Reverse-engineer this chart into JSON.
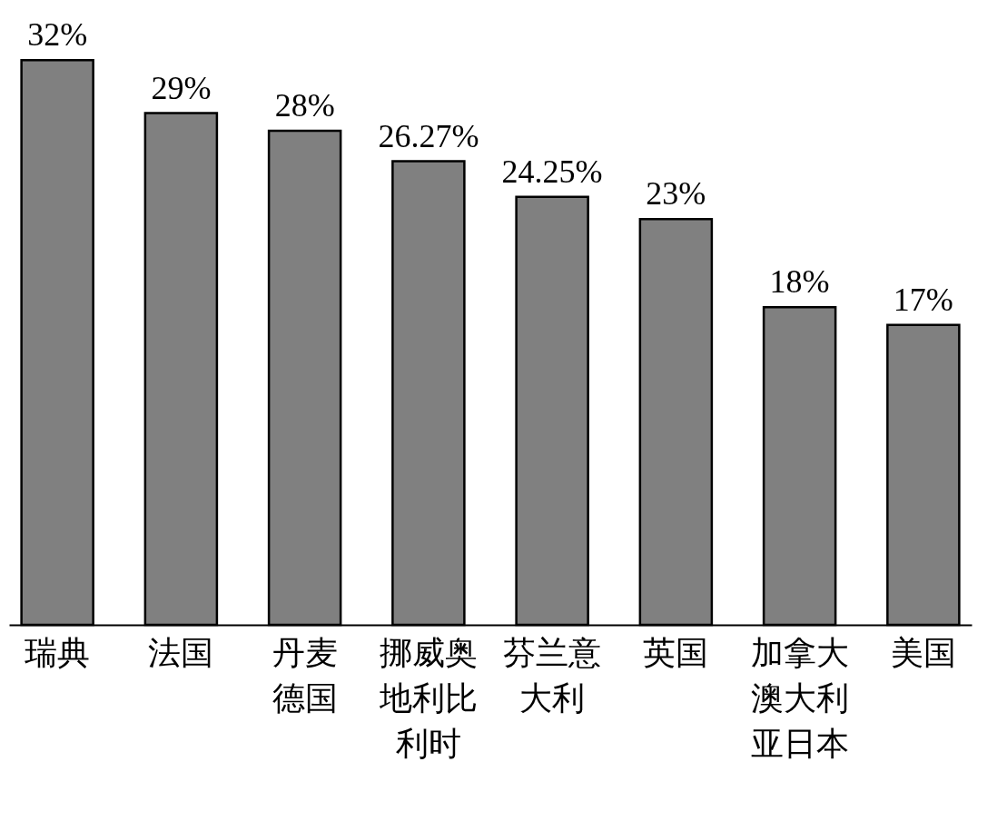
{
  "chart_data": {
    "type": "bar",
    "categories": [
      "瑞典",
      "法国",
      "丹麦德国",
      "挪威奥地利比利时",
      "芬兰意大利",
      "英国",
      "加拿大澳大利亚日本",
      "美国"
    ],
    "values": [
      32,
      29,
      28,
      26.27,
      24.25,
      23,
      18,
      17
    ],
    "value_labels": [
      "32%",
      "29%",
      "28%",
      "26.27%",
      "24.25%",
      "23%",
      "18%",
      "17%"
    ],
    "color": "#808080",
    "tick_labels": "x"
  }
}
